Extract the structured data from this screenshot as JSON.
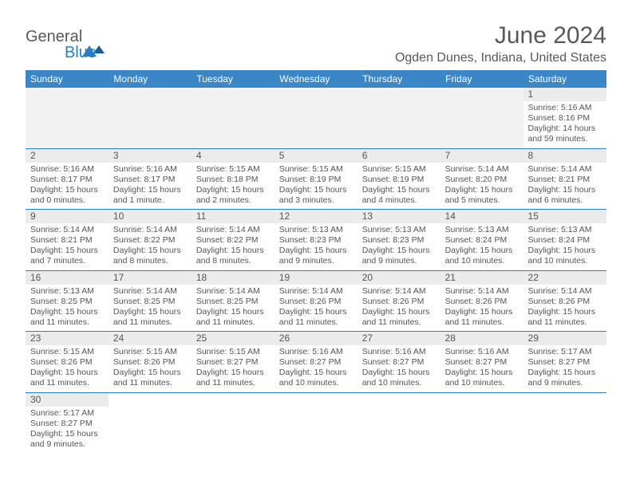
{
  "logo": {
    "word1": "General",
    "word2": "Blue"
  },
  "title": "June 2024",
  "location": "Ogden Dunes, Indiana, United States",
  "colors": {
    "header_bg": "#3b86c6",
    "header_text": "#ffffff",
    "rule": "#2a7ec4",
    "daynum_bg": "#ececec",
    "text": "#555555",
    "title_text": "#58595b"
  },
  "day_headers": [
    "Sunday",
    "Monday",
    "Tuesday",
    "Wednesday",
    "Thursday",
    "Friday",
    "Saturday"
  ],
  "weeks": [
    [
      null,
      null,
      null,
      null,
      null,
      null,
      {
        "n": "1",
        "sr": "Sunrise: 5:16 AM",
        "ss": "Sunset: 8:16 PM",
        "dl": "Daylight: 14 hours and 59 minutes."
      }
    ],
    [
      {
        "n": "2",
        "sr": "Sunrise: 5:16 AM",
        "ss": "Sunset: 8:17 PM",
        "dl": "Daylight: 15 hours and 0 minutes."
      },
      {
        "n": "3",
        "sr": "Sunrise: 5:16 AM",
        "ss": "Sunset: 8:17 PM",
        "dl": "Daylight: 15 hours and 1 minute."
      },
      {
        "n": "4",
        "sr": "Sunrise: 5:15 AM",
        "ss": "Sunset: 8:18 PM",
        "dl": "Daylight: 15 hours and 2 minutes."
      },
      {
        "n": "5",
        "sr": "Sunrise: 5:15 AM",
        "ss": "Sunset: 8:19 PM",
        "dl": "Daylight: 15 hours and 3 minutes."
      },
      {
        "n": "6",
        "sr": "Sunrise: 5:15 AM",
        "ss": "Sunset: 8:19 PM",
        "dl": "Daylight: 15 hours and 4 minutes."
      },
      {
        "n": "7",
        "sr": "Sunrise: 5:14 AM",
        "ss": "Sunset: 8:20 PM",
        "dl": "Daylight: 15 hours and 5 minutes."
      },
      {
        "n": "8",
        "sr": "Sunrise: 5:14 AM",
        "ss": "Sunset: 8:21 PM",
        "dl": "Daylight: 15 hours and 6 minutes."
      }
    ],
    [
      {
        "n": "9",
        "sr": "Sunrise: 5:14 AM",
        "ss": "Sunset: 8:21 PM",
        "dl": "Daylight: 15 hours and 7 minutes."
      },
      {
        "n": "10",
        "sr": "Sunrise: 5:14 AM",
        "ss": "Sunset: 8:22 PM",
        "dl": "Daylight: 15 hours and 8 minutes."
      },
      {
        "n": "11",
        "sr": "Sunrise: 5:14 AM",
        "ss": "Sunset: 8:22 PM",
        "dl": "Daylight: 15 hours and 8 minutes."
      },
      {
        "n": "12",
        "sr": "Sunrise: 5:13 AM",
        "ss": "Sunset: 8:23 PM",
        "dl": "Daylight: 15 hours and 9 minutes."
      },
      {
        "n": "13",
        "sr": "Sunrise: 5:13 AM",
        "ss": "Sunset: 8:23 PM",
        "dl": "Daylight: 15 hours and 9 minutes."
      },
      {
        "n": "14",
        "sr": "Sunrise: 5:13 AM",
        "ss": "Sunset: 8:24 PM",
        "dl": "Daylight: 15 hours and 10 minutes."
      },
      {
        "n": "15",
        "sr": "Sunrise: 5:13 AM",
        "ss": "Sunset: 8:24 PM",
        "dl": "Daylight: 15 hours and 10 minutes."
      }
    ],
    [
      {
        "n": "16",
        "sr": "Sunrise: 5:13 AM",
        "ss": "Sunset: 8:25 PM",
        "dl": "Daylight: 15 hours and 11 minutes."
      },
      {
        "n": "17",
        "sr": "Sunrise: 5:14 AM",
        "ss": "Sunset: 8:25 PM",
        "dl": "Daylight: 15 hours and 11 minutes."
      },
      {
        "n": "18",
        "sr": "Sunrise: 5:14 AM",
        "ss": "Sunset: 8:25 PM",
        "dl": "Daylight: 15 hours and 11 minutes."
      },
      {
        "n": "19",
        "sr": "Sunrise: 5:14 AM",
        "ss": "Sunset: 8:26 PM",
        "dl": "Daylight: 15 hours and 11 minutes."
      },
      {
        "n": "20",
        "sr": "Sunrise: 5:14 AM",
        "ss": "Sunset: 8:26 PM",
        "dl": "Daylight: 15 hours and 11 minutes."
      },
      {
        "n": "21",
        "sr": "Sunrise: 5:14 AM",
        "ss": "Sunset: 8:26 PM",
        "dl": "Daylight: 15 hours and 11 minutes."
      },
      {
        "n": "22",
        "sr": "Sunrise: 5:14 AM",
        "ss": "Sunset: 8:26 PM",
        "dl": "Daylight: 15 hours and 11 minutes."
      }
    ],
    [
      {
        "n": "23",
        "sr": "Sunrise: 5:15 AM",
        "ss": "Sunset: 8:26 PM",
        "dl": "Daylight: 15 hours and 11 minutes."
      },
      {
        "n": "24",
        "sr": "Sunrise: 5:15 AM",
        "ss": "Sunset: 8:26 PM",
        "dl": "Daylight: 15 hours and 11 minutes."
      },
      {
        "n": "25",
        "sr": "Sunrise: 5:15 AM",
        "ss": "Sunset: 8:27 PM",
        "dl": "Daylight: 15 hours and 11 minutes."
      },
      {
        "n": "26",
        "sr": "Sunrise: 5:16 AM",
        "ss": "Sunset: 8:27 PM",
        "dl": "Daylight: 15 hours and 10 minutes."
      },
      {
        "n": "27",
        "sr": "Sunrise: 5:16 AM",
        "ss": "Sunset: 8:27 PM",
        "dl": "Daylight: 15 hours and 10 minutes."
      },
      {
        "n": "28",
        "sr": "Sunrise: 5:16 AM",
        "ss": "Sunset: 8:27 PM",
        "dl": "Daylight: 15 hours and 10 minutes."
      },
      {
        "n": "29",
        "sr": "Sunrise: 5:17 AM",
        "ss": "Sunset: 8:27 PM",
        "dl": "Daylight: 15 hours and 9 minutes."
      }
    ],
    [
      {
        "n": "30",
        "sr": "Sunrise: 5:17 AM",
        "ss": "Sunset: 8:27 PM",
        "dl": "Daylight: 15 hours and 9 minutes."
      },
      null,
      null,
      null,
      null,
      null,
      null
    ]
  ]
}
